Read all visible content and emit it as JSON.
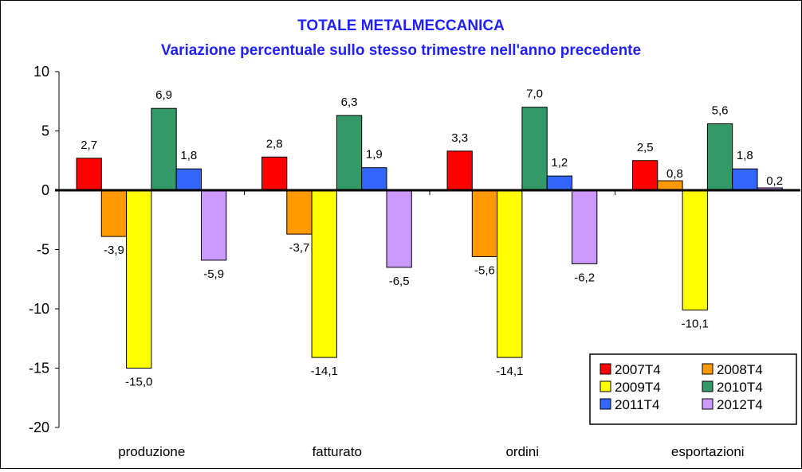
{
  "chart_data": {
    "type": "bar",
    "title": "TOTALE METALMECCANICA",
    "subtitle": "Variazione percentuale sullo stesso trimestre nell'anno precedente",
    "categories": [
      "produzione",
      "fatturato",
      "ordini",
      "esportazioni"
    ],
    "series": [
      {
        "name": "2007T4",
        "color": "#ff0000",
        "values": [
          2.7,
          2.8,
          3.3,
          2.5
        ],
        "labels": [
          "2,7",
          "2,8",
          "3,3",
          "2,5"
        ]
      },
      {
        "name": "2008T4",
        "color": "#ff9900",
        "values": [
          -3.9,
          -3.7,
          -5.6,
          0.8
        ],
        "labels": [
          "-3,9",
          "-3,7",
          "-5,6",
          "0,8"
        ]
      },
      {
        "name": "2009T4",
        "color": "#ffff00",
        "values": [
          -15.0,
          -14.1,
          -14.1,
          -10.1
        ],
        "labels": [
          "-15,0",
          "-14,1",
          "-14,1",
          "-10,1"
        ]
      },
      {
        "name": "2010T4",
        "color": "#339966",
        "values": [
          6.9,
          6.3,
          7.0,
          5.6
        ],
        "labels": [
          "6,9",
          "6,3",
          "7,0",
          "5,6"
        ]
      },
      {
        "name": "2011T4",
        "color": "#3366ff",
        "values": [
          1.8,
          1.9,
          1.2,
          1.8
        ],
        "labels": [
          "1,8",
          "1,9",
          "1,2",
          "1,8"
        ]
      },
      {
        "name": "2012T4",
        "color": "#cc99ff",
        "values": [
          -5.9,
          -6.5,
          -6.2,
          0.2
        ],
        "labels": [
          "-5,9",
          "-6,5",
          "-6,2",
          "0,2"
        ]
      }
    ],
    "yticks": [
      "10",
      "5",
      "0",
      "-5",
      "-10",
      "-15",
      "-20"
    ],
    "ylim": [
      -20,
      10
    ],
    "xlabel": "",
    "ylabel": "",
    "grid": false,
    "legend_position": "bottom-right"
  }
}
